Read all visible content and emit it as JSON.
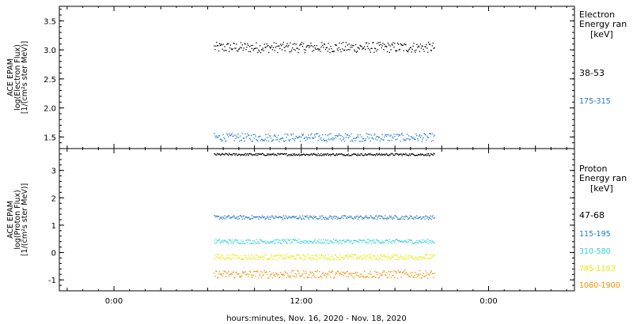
{
  "chart_data": {
    "type": "scatter",
    "xlabel": "hours:minutes, Nov. 16, 2020 - Nov. 18, 2020",
    "x_ticks": [
      {
        "label": "0:00",
        "hours": 0
      },
      {
        "label": "12:00",
        "hours": 12
      },
      {
        "label": "0:00",
        "hours": 24
      }
    ],
    "x_range_hours": [
      -3.5,
      29.5
    ],
    "data_x_range_hours": [
      6.4,
      20.5
    ],
    "panels": [
      {
        "id": "electron",
        "ylabel_lines": [
          "ACE EPAM",
          "log(Electron Flux)",
          "[1/(cm²s ster MeV)]"
        ],
        "ylim": [
          1.3,
          3.75
        ],
        "y_ticks": [
          1.5,
          2.0,
          2.5,
          3.0,
          3.5
        ],
        "y_tick_labels": [
          "1.5",
          "2.0",
          "2.5",
          "3.0",
          "3.5"
        ],
        "legend_title": [
          "Electron",
          "Energy ran",
          "[keV]"
        ],
        "series": [
          {
            "name": "38-53",
            "color": "#000000",
            "mean": 3.05,
            "noise": 0.09
          },
          {
            "name": "175-315",
            "color": "#1f78c8",
            "mean": 1.5,
            "noise": 0.07
          }
        ]
      },
      {
        "id": "proton",
        "ylabel_lines": [
          "ACE EPAM",
          "log(Proton Flux)",
          "[1/(cm²s ster MeV)]"
        ],
        "ylim": [
          -1.4,
          3.8
        ],
        "y_ticks": [
          -1,
          0,
          1,
          2,
          3
        ],
        "y_tick_labels": [
          "-1",
          "0",
          "1",
          "2",
          "3"
        ],
        "legend_title": [
          "Proton",
          "Energy ran",
          "[keV]"
        ],
        "series": [
          {
            "name": "47-68",
            "color": "#000000",
            "mean": 3.6,
            "noise": 0.04
          },
          {
            "name": "115-195",
            "color": "#1f78c8",
            "mean": 1.3,
            "noise": 0.07
          },
          {
            "name": "310-580",
            "color": "#29d4d4",
            "mean": 0.42,
            "noise": 0.08
          },
          {
            "name": "795-1193",
            "color": "#e8e800",
            "mean": -0.15,
            "noise": 0.1
          },
          {
            "name": "1060-1900",
            "color": "#f08c00",
            "mean": -0.78,
            "noise": 0.14
          }
        ]
      }
    ]
  }
}
